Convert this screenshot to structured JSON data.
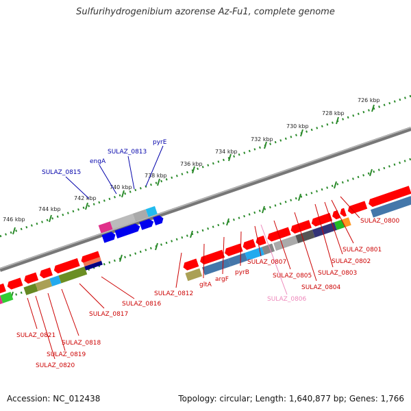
{
  "title": "Sulfurihydrogenibium azorense Az-Fu1, complete genome",
  "accession": "Accession: NC_012438",
  "summary": "Topology: circular; Length: 1,640,877 bp; Genes: 1,766",
  "colors": {
    "forward_label": "#0000aa",
    "reverse_label": "#cc0000",
    "pseudo_label": "#ee88bb",
    "backbone": "#777777",
    "tick": "#2a8a2a"
  },
  "kbp_ticks": [
    "726 kbp",
    "728 kbp",
    "730 kbp",
    "732 kbp",
    "734 kbp",
    "736 kbp",
    "738 kbp",
    "740 kbp",
    "742 kbp",
    "744 kbp",
    "746 kbp"
  ],
  "forward_genes": [
    "pyrE",
    "SULAZ_0813",
    "engA",
    "SULAZ_0815"
  ],
  "reverse_genes": [
    "SULAZ_0800",
    "SULAZ_0801",
    "SULAZ_0802",
    "SULAZ_0803",
    "SULAZ_0804",
    "SULAZ_0805",
    "SULAZ_0806",
    "SULAZ_0807",
    "pyrB",
    "argF",
    "gltA",
    "SULAZ_0812",
    "SULAZ_0816",
    "SULAZ_0817",
    "SULAZ_0818",
    "SULAZ_0819",
    "SULAZ_0820",
    "SULAZ_0821"
  ]
}
